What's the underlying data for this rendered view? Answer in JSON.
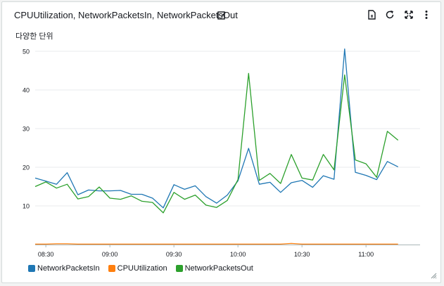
{
  "widget": {
    "title": "CPUUtilization, NetworkPacketsIn, NetworkPacketsOut",
    "unit_label": "다양한 단위"
  },
  "icons": [
    "edit-icon",
    "document-icon",
    "refresh-icon",
    "expand-icon",
    "more-vertical-icon",
    "resize-handle-icon"
  ],
  "colors": {
    "NetworkPacketsIn": "#1f77b4",
    "CPUUtilization": "#ff7f0e",
    "NetworkPacketsOut": "#2ca02c",
    "grid": "#e9ebed",
    "axis_text": "#16191f"
  },
  "chart_data": {
    "type": "line",
    "ylim": [
      0,
      50
    ],
    "yticks": [
      "10",
      "20",
      "30",
      "40",
      "50"
    ],
    "xticks": [
      "08:30",
      "09:00",
      "09:30",
      "10:00",
      "10:30",
      "11:00"
    ],
    "x": [
      "08:25",
      "08:30",
      "08:35",
      "08:40",
      "08:45",
      "08:50",
      "08:55",
      "09:00",
      "09:05",
      "09:10",
      "09:15",
      "09:20",
      "09:25",
      "09:30",
      "09:35",
      "09:40",
      "09:45",
      "09:50",
      "09:55",
      "10:00",
      "10:05",
      "10:10",
      "10:15",
      "10:20",
      "10:25",
      "10:30",
      "10:35",
      "10:40",
      "10:45",
      "10:50",
      "10:55",
      "11:00",
      "11:05",
      "11:10",
      "11:15"
    ],
    "grid": true,
    "legend_position": "bottom-left",
    "series": [
      {
        "name": "NetworkPacketsIn",
        "values": [
          17.2,
          16.4,
          15.6,
          18.6,
          12.9,
          14.1,
          13.9,
          13.9,
          14.0,
          13.0,
          13.0,
          12.0,
          9.5,
          15.5,
          14.3,
          15.2,
          12.4,
          10.7,
          12.8,
          16.5,
          24.9,
          15.6,
          16.1,
          13.5,
          16.0,
          16.6,
          14.8,
          17.8,
          16.9,
          50.6,
          18.7,
          17.9,
          16.8,
          21.5,
          20.1
        ]
      },
      {
        "name": "CPUUtilization",
        "values": [
          0.1,
          0.1,
          0.2,
          0.2,
          0.1,
          0.1,
          0.1,
          0.1,
          0.1,
          0.1,
          0.1,
          0.1,
          0.1,
          0.1,
          0.1,
          0.1,
          0.1,
          0.1,
          0.1,
          0.1,
          0.1,
          0.1,
          0.1,
          0.1,
          0.3,
          0.1,
          0.1,
          0.1,
          0.1,
          0.1,
          0.1,
          0.1,
          0.1,
          0.1,
          0.1
        ]
      },
      {
        "name": "NetworkPacketsOut",
        "values": [
          15.0,
          16.2,
          14.6,
          15.6,
          11.8,
          12.4,
          14.9,
          12.0,
          11.7,
          12.6,
          11.2,
          10.9,
          8.2,
          13.5,
          11.7,
          12.8,
          10.2,
          9.6,
          11.4,
          16.8,
          44.3,
          16.6,
          18.4,
          15.8,
          23.3,
          17.2,
          16.7,
          23.3,
          19.3,
          43.9,
          21.9,
          20.9,
          17.4,
          29.3,
          27.0
        ]
      }
    ]
  }
}
